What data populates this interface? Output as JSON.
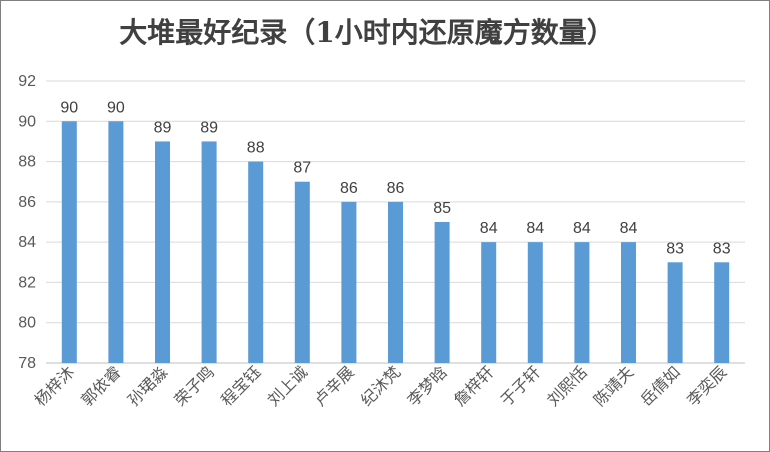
{
  "chart_data": {
    "type": "bar",
    "title": "大堆最好纪录（1小时内还原魔方数量）",
    "categories": [
      "杨梓沐",
      "郭依睿",
      "孙珺淼",
      "荣子鸣",
      "程宝钰",
      "刘上诚",
      "卢辛展",
      "纪沐梵",
      "李梦晗",
      "詹梓轩",
      "于子轩",
      "刘熙恬",
      "陈靖夫",
      "岳倩如",
      "李奕辰"
    ],
    "values": [
      90,
      90,
      89,
      89,
      88,
      87,
      86,
      86,
      85,
      84,
      84,
      84,
      84,
      83,
      83
    ],
    "yticks": [
      78,
      80,
      82,
      84,
      86,
      88,
      90,
      92
    ],
    "ylim": [
      78,
      92
    ],
    "xlabel": "",
    "ylabel": "",
    "grid": true,
    "data_labels": true,
    "colors": {
      "bar": "#5b9bd5",
      "grid": "#d9d9d9",
      "text": "#595959"
    }
  }
}
